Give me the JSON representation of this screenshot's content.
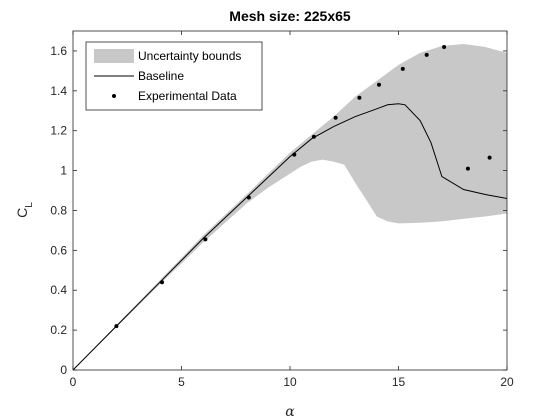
{
  "chart_data": {
    "type": "line",
    "title": "Mesh size: 225x65",
    "xlabel": "α",
    "ylabel_main": "C",
    "ylabel_sub": "L",
    "xlim": [
      0,
      20
    ],
    "ylim": [
      0,
      1.7
    ],
    "xticks": [
      0,
      5,
      10,
      15,
      20
    ],
    "xtick_labels": [
      "0",
      "5",
      "10",
      "15",
      "20"
    ],
    "yticks": [
      0,
      0.2,
      0.4,
      0.6,
      0.8,
      1.0,
      1.2,
      1.4,
      1.6
    ],
    "ytick_labels": [
      "0",
      "0.2",
      "0.4",
      "0.6",
      "0.8",
      "1",
      "1.2",
      "1.4",
      "1.6"
    ],
    "grid": false,
    "legend_position": "top-left",
    "legend": [
      {
        "label": "Uncertainty bounds",
        "kind": "patch"
      },
      {
        "label": "Baseline",
        "kind": "line"
      },
      {
        "label": "Experimental Data",
        "kind": "marker"
      }
    ],
    "series": [
      {
        "name": "Uncertainty bounds",
        "kind": "band",
        "upper": [
          [
            0,
            0
          ],
          [
            2,
            0.225
          ],
          [
            4,
            0.45
          ],
          [
            6,
            0.675
          ],
          [
            8,
            0.88
          ],
          [
            10,
            1.09
          ],
          [
            11,
            1.18
          ],
          [
            12,
            1.27
          ],
          [
            13,
            1.37
          ],
          [
            14,
            1.45
          ],
          [
            15,
            1.53
          ],
          [
            16,
            1.59
          ],
          [
            17,
            1.625
          ],
          [
            18,
            1.635
          ],
          [
            19,
            1.62
          ],
          [
            20,
            1.59
          ]
        ],
        "lower": [
          [
            0,
            0
          ],
          [
            2,
            0.215
          ],
          [
            4,
            0.43
          ],
          [
            6,
            0.64
          ],
          [
            8,
            0.835
          ],
          [
            9,
            0.915
          ],
          [
            10,
            0.985
          ],
          [
            10.5,
            1.02
          ],
          [
            11,
            1.045
          ],
          [
            11.5,
            1.055
          ],
          [
            12,
            1.045
          ],
          [
            12.5,
            1.03
          ],
          [
            13,
            0.94
          ],
          [
            13.5,
            0.855
          ],
          [
            14,
            0.77
          ],
          [
            14.5,
            0.745
          ],
          [
            15,
            0.735
          ],
          [
            16,
            0.738
          ],
          [
            17,
            0.745
          ],
          [
            18,
            0.758
          ],
          [
            19,
            0.77
          ],
          [
            20,
            0.785
          ]
        ]
      },
      {
        "name": "Baseline",
        "kind": "line",
        "points": [
          [
            0,
            0
          ],
          [
            2,
            0.22
          ],
          [
            4,
            0.44
          ],
          [
            6,
            0.66
          ],
          [
            8,
            0.865
          ],
          [
            10,
            1.07
          ],
          [
            11,
            1.16
          ],
          [
            12,
            1.22
          ],
          [
            13,
            1.27
          ],
          [
            14,
            1.31
          ],
          [
            14.5,
            1.33
          ],
          [
            15,
            1.335
          ],
          [
            15.3,
            1.33
          ],
          [
            16,
            1.25
          ],
          [
            16.5,
            1.14
          ],
          [
            17,
            0.97
          ],
          [
            18,
            0.905
          ],
          [
            19,
            0.88
          ],
          [
            20,
            0.86
          ]
        ]
      },
      {
        "name": "Experimental Data",
        "kind": "scatter",
        "points": [
          [
            2,
            0.22
          ],
          [
            4.1,
            0.44
          ],
          [
            6.1,
            0.655
          ],
          [
            8.1,
            0.865
          ],
          [
            10.2,
            1.08
          ],
          [
            11.1,
            1.17
          ],
          [
            12.1,
            1.265
          ],
          [
            13.2,
            1.365
          ],
          [
            14.1,
            1.43
          ],
          [
            15.2,
            1.51
          ],
          [
            16.3,
            1.58
          ],
          [
            17.1,
            1.62
          ],
          [
            18.2,
            1.01
          ],
          [
            19.2,
            1.065
          ]
        ]
      }
    ],
    "colors": {
      "band": "#c8c8c8",
      "line": "#000000",
      "marker": "#000000",
      "axis": "#262626"
    }
  }
}
